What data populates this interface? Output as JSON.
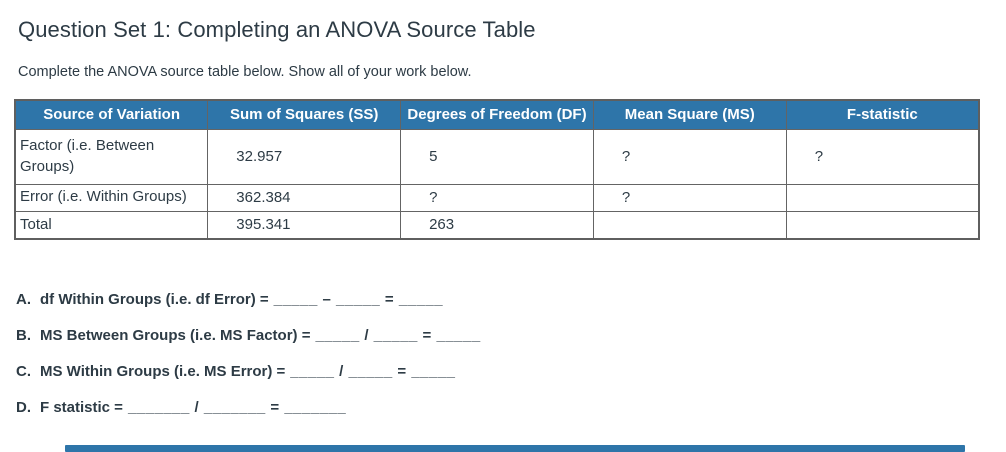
{
  "page": {
    "title": "Question Set 1: Completing an ANOVA Source Table",
    "instructions": "Complete the ANOVA source table below. Show all of your work below."
  },
  "table": {
    "headers": [
      "Source of Variation",
      "Sum of Squares (SS)",
      "Degrees of Freedom (DF)",
      "Mean Square (MS)",
      "F-statistic"
    ],
    "rows": [
      {
        "source": "Factor (i.e. Between Groups)",
        "ss": "32.957",
        "df": "5",
        "ms": "?",
        "f": "?"
      },
      {
        "source": "Error (i.e. Within Groups)",
        "ss": "362.384",
        "df": "?",
        "ms": "?",
        "f": ""
      },
      {
        "source": "Total",
        "ss": "395.341",
        "df": "263",
        "ms": "",
        "f": ""
      }
    ]
  },
  "questions": [
    {
      "label": "A.",
      "text": "df Within Groups (i.e. df Error) =",
      "blanks": "_____ – _____ = _____"
    },
    {
      "label": "B.",
      "text": "MS Between Groups (i.e. MS Factor) =",
      "blanks": "_____ / _____ = _____"
    },
    {
      "label": "C.",
      "text": "MS Within Groups (i.e. MS Error) =",
      "blanks": "_____ / _____ = _____"
    },
    {
      "label": "D.",
      "text": "F statistic =",
      "blanks": "_______ / _______ = _______"
    }
  ],
  "colors": {
    "header_bg": "#2E75A9",
    "header_text": "#FFFFFF",
    "row_highlight_blue": "#CBE1F2",
    "cell_disabled_gray": "#E2E2E2",
    "table_border": "#5F5F5F",
    "text": "#2D3B45",
    "scrollbar": "#2E75A9"
  }
}
